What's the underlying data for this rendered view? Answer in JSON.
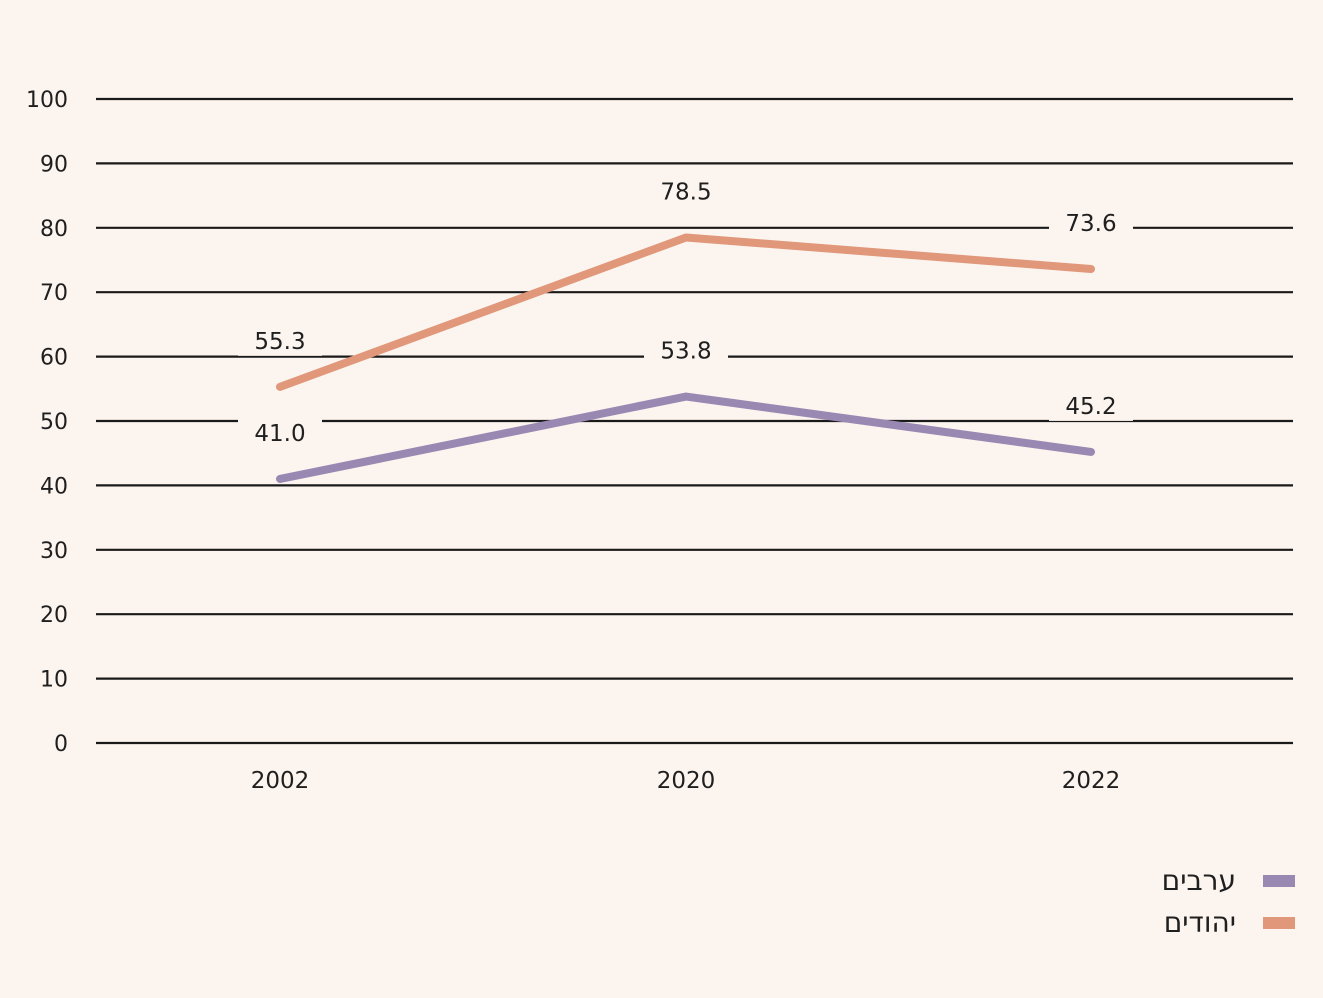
{
  "chart_data": {
    "type": "line",
    "categories": [
      "2002",
      "2020",
      "2022"
    ],
    "ylim": [
      0,
      100
    ],
    "yticks": [
      "0",
      "10",
      "20",
      "30",
      "40",
      "50",
      "60",
      "70",
      "80",
      "90",
      "100"
    ],
    "grid": true,
    "legend_position": "bottom-right",
    "series": [
      {
        "name": "יהודים",
        "color": "#e0977a",
        "values": [
          55.3,
          78.5,
          73.6
        ],
        "labels": [
          "55.3",
          "78.5",
          "73.6"
        ]
      },
      {
        "name": "ערבים",
        "color": "#9888b2",
        "values": [
          41.0,
          53.8,
          45.2
        ],
        "labels": [
          "41.0",
          "53.8",
          "45.2"
        ]
      }
    ]
  }
}
